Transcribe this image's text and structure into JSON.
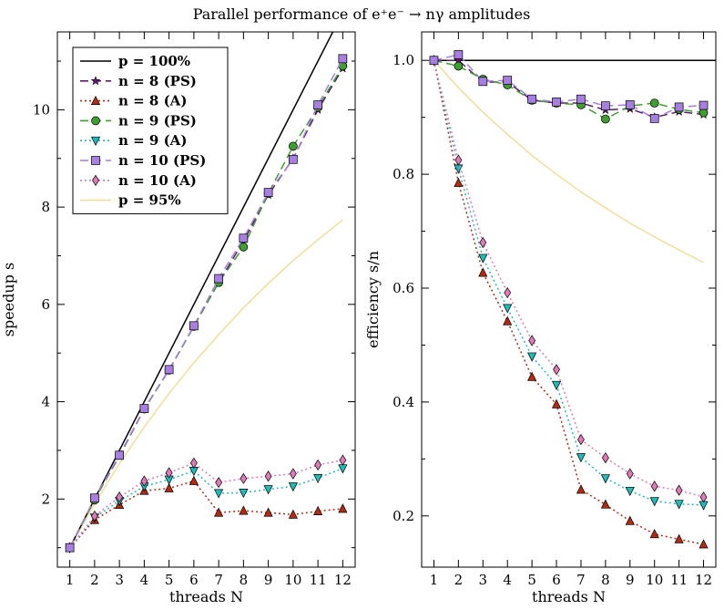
{
  "figure": {
    "title": "Parallel performance of e⁺e⁻ → nγ amplitudes"
  },
  "chart_data": [
    {
      "type": "line",
      "panel": "left",
      "xlabel": "threads N",
      "ylabel": "speedup s",
      "xlim": [
        0.5,
        12.5
      ],
      "ylim": [
        0.6,
        11.6
      ],
      "xticks": [
        1,
        2,
        3,
        4,
        5,
        6,
        7,
        8,
        9,
        10,
        11,
        12
      ],
      "yticks": [
        2,
        4,
        6,
        8,
        10
      ],
      "grid": false,
      "legend_position": "top-left",
      "x": [
        1,
        2,
        3,
        4,
        5,
        6,
        7,
        8,
        9,
        10,
        11,
        12
      ],
      "series": [
        {
          "key": "ideal",
          "name": "p = 100%",
          "style": "solid",
          "marker": "none",
          "color": "#000000",
          "values": [
            1,
            2,
            3,
            4,
            5,
            6,
            7,
            8,
            9,
            10,
            11,
            12
          ]
        },
        {
          "key": "n8ps",
          "name": "n = 8 (PS)",
          "style": "dashed",
          "marker": "star",
          "color": "#5b1a6b",
          "values": [
            1,
            2.0,
            2.88,
            3.85,
            4.65,
            5.55,
            6.45,
            7.3,
            8.25,
            9.0,
            10.0,
            10.85
          ]
        },
        {
          "key": "n8a",
          "name": "n = 8 (A)",
          "style": "dotted",
          "marker": "triangle-up",
          "color": "#b52a12",
          "values": [
            1,
            1.57,
            1.88,
            2.17,
            2.22,
            2.37,
            1.72,
            1.76,
            1.72,
            1.68,
            1.75,
            1.8
          ]
        },
        {
          "key": "n9ps",
          "name": "n = 9 (PS)",
          "style": "dashed",
          "marker": "circle",
          "color": "#3e9e2e",
          "values": [
            1,
            1.98,
            2.9,
            3.85,
            4.65,
            5.55,
            6.45,
            7.18,
            8.28,
            9.25,
            10.05,
            10.9
          ]
        },
        {
          "key": "n9a",
          "name": "n = 9 (A)",
          "style": "dotted",
          "marker": "triangle-down",
          "color": "#1fbcbc",
          "values": [
            1,
            1.62,
            1.96,
            2.26,
            2.4,
            2.58,
            2.12,
            2.13,
            2.2,
            2.26,
            2.43,
            2.63
          ]
        },
        {
          "key": "n10ps",
          "name": "n = 10 (PS)",
          "style": "dashed",
          "marker": "square",
          "color": "#a67fe0",
          "values": [
            1,
            2.02,
            2.9,
            3.86,
            4.66,
            5.56,
            6.53,
            7.36,
            8.3,
            8.98,
            10.1,
            11.05
          ]
        },
        {
          "key": "n10a",
          "name": "n = 10 (A)",
          "style": "dotted",
          "marker": "diamond",
          "color": "#e07ab8",
          "values": [
            1,
            1.65,
            2.04,
            2.37,
            2.54,
            2.74,
            2.34,
            2.42,
            2.47,
            2.52,
            2.7,
            2.8
          ]
        },
        {
          "key": "amdahl95",
          "name": "p = 95%",
          "style": "solid",
          "marker": "none",
          "color": "#f2dfa0",
          "values": [
            1,
            1.9,
            2.73,
            3.48,
            4.17,
            4.8,
            5.38,
            5.93,
            6.43,
            6.9,
            7.33,
            7.74
          ]
        }
      ]
    },
    {
      "type": "line",
      "panel": "right",
      "xlabel": "threads N",
      "ylabel": "efficiency s/n",
      "xlim": [
        0.5,
        12.5
      ],
      "ylim": [
        0.11,
        1.05
      ],
      "xticks": [
        1,
        2,
        3,
        4,
        5,
        6,
        7,
        8,
        9,
        10,
        11,
        12
      ],
      "yticks": [
        0.2,
        0.4,
        0.6,
        0.8,
        1.0
      ],
      "ytick_labels": [
        "0.2",
        "0.4",
        "0.6",
        "0.8",
        "1.0"
      ],
      "grid": false,
      "x": [
        1,
        2,
        3,
        4,
        5,
        6,
        7,
        8,
        9,
        10,
        11,
        12
      ],
      "series": [
        {
          "key": "ideal",
          "style": "solid",
          "marker": "none",
          "color": "#000000",
          "values": [
            1,
            1,
            1,
            1,
            1,
            1,
            1,
            1,
            1,
            1,
            1,
            1
          ]
        },
        {
          "key": "n8ps",
          "style": "dashed",
          "marker": "star",
          "color": "#5b1a6b",
          "values": [
            1.0,
            1.0,
            0.962,
            0.962,
            0.93,
            0.925,
            0.925,
            0.913,
            0.915,
            0.9,
            0.91,
            0.905
          ]
        },
        {
          "key": "n8a",
          "style": "dotted",
          "marker": "triangle-up",
          "color": "#b52a12",
          "values": [
            1.0,
            0.785,
            0.627,
            0.542,
            0.444,
            0.396,
            0.246,
            0.22,
            0.191,
            0.168,
            0.159,
            0.15
          ]
        },
        {
          "key": "n9ps",
          "style": "dashed",
          "marker": "circle",
          "color": "#3e9e2e",
          "values": [
            1.0,
            0.99,
            0.967,
            0.957,
            0.93,
            0.925,
            0.922,
            0.897,
            0.92,
            0.925,
            0.914,
            0.908
          ]
        },
        {
          "key": "n9a",
          "style": "dotted",
          "marker": "triangle-down",
          "color": "#1fbcbc",
          "values": [
            1.0,
            0.81,
            0.653,
            0.565,
            0.48,
            0.43,
            0.303,
            0.266,
            0.244,
            0.226,
            0.221,
            0.219
          ]
        },
        {
          "key": "n10ps",
          "style": "dashed",
          "marker": "square",
          "color": "#a67fe0",
          "values": [
            1.0,
            1.01,
            0.963,
            0.965,
            0.932,
            0.927,
            0.932,
            0.92,
            0.922,
            0.898,
            0.918,
            0.921
          ]
        },
        {
          "key": "n10a",
          "style": "dotted",
          "marker": "diamond",
          "color": "#e07ab8",
          "values": [
            1.0,
            0.825,
            0.68,
            0.592,
            0.508,
            0.457,
            0.334,
            0.302,
            0.274,
            0.252,
            0.245,
            0.233
          ]
        },
        {
          "key": "amdahl95",
          "style": "solid",
          "marker": "none",
          "color": "#f2dfa0",
          "values": [
            1.0,
            0.952,
            0.909,
            0.87,
            0.833,
            0.8,
            0.769,
            0.741,
            0.714,
            0.69,
            0.667,
            0.645
          ]
        }
      ]
    }
  ]
}
